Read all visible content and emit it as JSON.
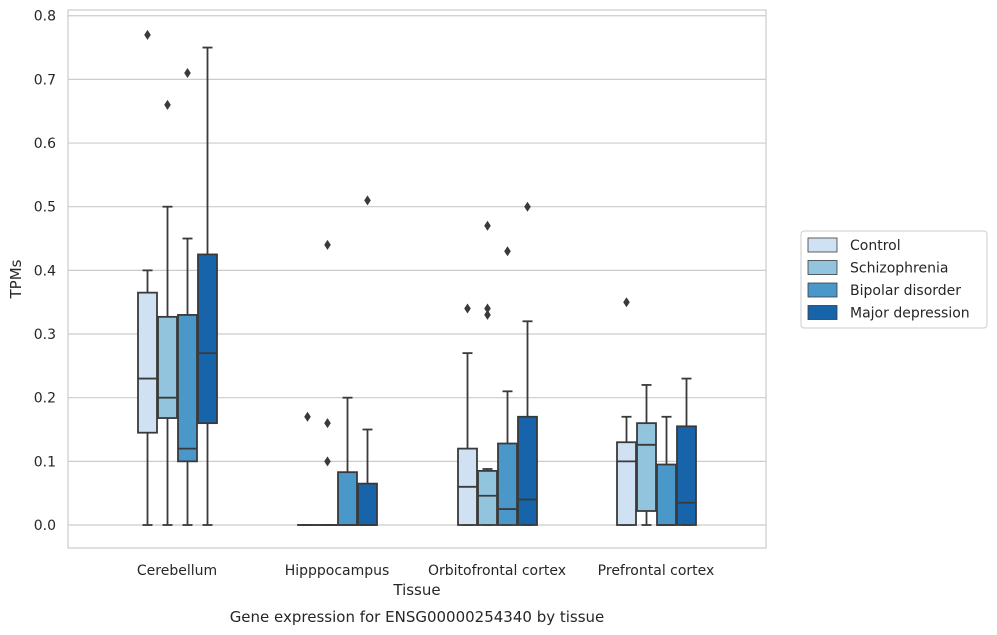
{
  "chart_data": {
    "type": "box",
    "title": "",
    "caption": "Gene expression for ENSG00000254340 by tissue",
    "xlabel": "Tissue",
    "ylabel": "TPMs",
    "ylim": [
      -0.04,
      0.81
    ],
    "yticks": [
      "0.0",
      "0.1",
      "0.2",
      "0.3",
      "0.4",
      "0.5",
      "0.6",
      "0.7",
      "0.8"
    ],
    "grid": "horizontal",
    "legend_position": "right",
    "categories": [
      "Cerebellum",
      "Hipppocampus",
      "Orbitofrontal cortex",
      "Prefrontal cortex"
    ],
    "series": [
      {
        "name": "Control",
        "color": "#cfe1f2",
        "boxes": [
          {
            "whislo": 0.0,
            "q1": 0.145,
            "med": 0.23,
            "q3": 0.365,
            "whishi": 0.4,
            "fliers": [
              0.77
            ]
          },
          {
            "whislo": 0.0,
            "q1": 0.0,
            "med": 0.0,
            "q3": 0.0,
            "whishi": 0.0,
            "fliers": [
              0.17
            ]
          },
          {
            "whislo": 0.0,
            "q1": 0.0,
            "med": 0.06,
            "q3": 0.12,
            "whishi": 0.27,
            "fliers": [
              0.34
            ]
          },
          {
            "whislo": 0.0,
            "q1": 0.0,
            "med": 0.1,
            "q3": 0.13,
            "whishi": 0.17,
            "fliers": [
              0.35
            ]
          }
        ]
      },
      {
        "name": "Schizophrenia",
        "color": "#93c4de",
        "boxes": [
          {
            "whislo": 0.0,
            "q1": 0.168,
            "med": 0.2,
            "q3": 0.327,
            "whishi": 0.5,
            "fliers": [
              0.66
            ]
          },
          {
            "whislo": 0.0,
            "q1": 0.0,
            "med": 0.0,
            "q3": 0.0,
            "whishi": 0.0,
            "fliers": [
              0.1,
              0.16,
              0.44
            ]
          },
          {
            "whislo": 0.0,
            "q1": 0.0,
            "med": 0.046,
            "q3": 0.085,
            "whishi": 0.088,
            "fliers": [
              0.33,
              0.34,
              0.47
            ]
          },
          {
            "whislo": 0.0,
            "q1": 0.022,
            "med": 0.126,
            "q3": 0.16,
            "whishi": 0.22,
            "fliers": []
          }
        ]
      },
      {
        "name": "Bipolar disorder",
        "color": "#4a98c9",
        "boxes": [
          {
            "whislo": 0.0,
            "q1": 0.1,
            "med": 0.12,
            "q3": 0.33,
            "whishi": 0.45,
            "fliers": [
              0.71
            ]
          },
          {
            "whislo": 0.0,
            "q1": 0.0,
            "med": 0.0,
            "q3": 0.083,
            "whishi": 0.2,
            "fliers": []
          },
          {
            "whislo": 0.0,
            "q1": 0.0,
            "med": 0.025,
            "q3": 0.128,
            "whishi": 0.21,
            "fliers": [
              0.43
            ]
          },
          {
            "whislo": 0.0,
            "q1": 0.0,
            "med": 0.0,
            "q3": 0.095,
            "whishi": 0.17,
            "fliers": []
          }
        ]
      },
      {
        "name": "Major depression",
        "color": "#1764ab",
        "boxes": [
          {
            "whislo": 0.0,
            "q1": 0.16,
            "med": 0.27,
            "q3": 0.425,
            "whishi": 0.75,
            "fliers": []
          },
          {
            "whislo": 0.0,
            "q1": 0.0,
            "med": 0.0,
            "q3": 0.065,
            "whishi": 0.15,
            "fliers": [
              0.51
            ]
          },
          {
            "whislo": 0.0,
            "q1": 0.0,
            "med": 0.04,
            "q3": 0.17,
            "whishi": 0.32,
            "fliers": [
              0.5
            ]
          },
          {
            "whislo": 0.0,
            "q1": 0.0,
            "med": 0.035,
            "q3": 0.155,
            "whishi": 0.23,
            "fliers": []
          }
        ]
      }
    ]
  }
}
